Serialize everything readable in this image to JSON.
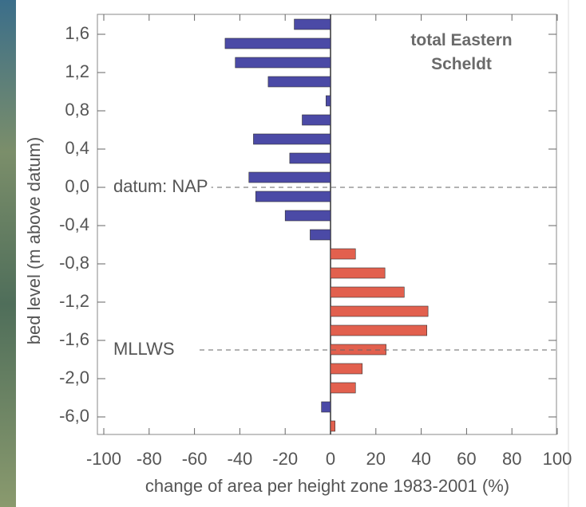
{
  "chart_data": {
    "type": "hbar",
    "title": "total Eastern Scheldt",
    "xlabel": "change of area per height zone 1983-2001 (%)",
    "ylabel": "bed level (m above datum)",
    "values": [
      -16,
      -46.5,
      -42,
      -27.5,
      -2,
      -12.5,
      -34,
      -18,
      -36,
      -33,
      -20,
      -9,
      11,
      24,
      32.5,
      43,
      42.5,
      24.5,
      14,
      11,
      -4,
      2
    ],
    "negative_color": "#4b4aa6",
    "positive_color": "#e2604e",
    "xlim": [
      -100,
      100
    ],
    "xticks": [
      -100,
      -80,
      -60,
      -40,
      -20,
      0,
      20,
      40,
      60,
      80,
      100
    ],
    "yticks": [
      {
        "value": 1.6,
        "label": "1,6"
      },
      {
        "value": 1.2,
        "label": "1,2"
      },
      {
        "value": 0.8,
        "label": "0,8"
      },
      {
        "value": 0.4,
        "label": "0,4"
      },
      {
        "value": 0.0,
        "label": "0,0"
      },
      {
        "value": -0.4,
        "label": "-0,4"
      },
      {
        "value": -0.8,
        "label": "-0,8"
      },
      {
        "value": -1.2,
        "label": "-1,2"
      },
      {
        "value": -1.6,
        "label": "-1,6"
      },
      {
        "value": -2.0,
        "label": "-2,0"
      },
      {
        "value": -6.0,
        "label": "-6,0"
      }
    ],
    "reference_lines": [
      {
        "label": "datum: NAP",
        "value": 0
      },
      {
        "label": "MLLWS",
        "value": -1.7
      }
    ]
  }
}
